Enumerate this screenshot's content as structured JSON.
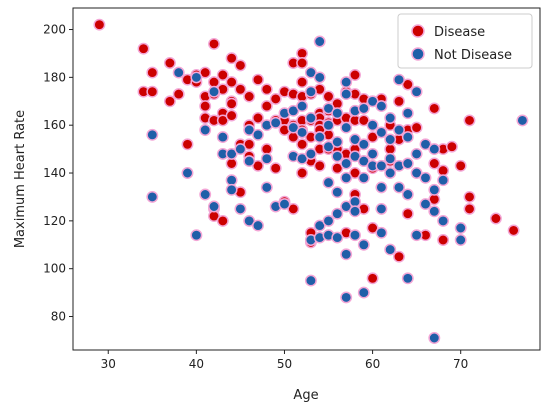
{
  "chart_data": {
    "type": "scatter",
    "title": "",
    "xlabel": "Age",
    "ylabel": "Maximum Heart Rate",
    "xlim": [
      26,
      79
    ],
    "ylim": [
      66,
      209
    ],
    "xticks": [
      30,
      40,
      50,
      60,
      70
    ],
    "yticks": [
      80,
      100,
      120,
      140,
      160,
      180,
      200
    ],
    "grid": false,
    "legend_position": "top-right",
    "series": [
      {
        "name": "Disease",
        "color": "#cc0000",
        "marker_outline": "#f3a6d6",
        "points": [
          [
            29,
            202
          ],
          [
            34,
            192
          ],
          [
            34,
            174
          ],
          [
            35,
            182
          ],
          [
            35,
            174
          ],
          [
            37,
            186
          ],
          [
            37,
            170
          ],
          [
            38,
            173
          ],
          [
            39,
            179
          ],
          [
            39,
            152
          ],
          [
            40,
            178
          ],
          [
            40,
            181
          ],
          [
            41,
            182
          ],
          [
            41,
            172
          ],
          [
            41,
            168
          ],
          [
            41,
            163
          ],
          [
            42,
            194
          ],
          [
            42,
            178
          ],
          [
            42,
            173
          ],
          [
            42,
            162
          ],
          [
            42,
            125
          ],
          [
            42,
            122
          ],
          [
            43,
            181
          ],
          [
            43,
            165
          ],
          [
            43,
            162
          ],
          [
            43,
            175
          ],
          [
            43,
            120
          ],
          [
            44,
            188
          ],
          [
            44,
            178
          ],
          [
            44,
            170
          ],
          [
            44,
            169
          ],
          [
            44,
            164
          ],
          [
            44,
            144
          ],
          [
            45,
            185
          ],
          [
            45,
            175
          ],
          [
            45,
            152
          ],
          [
            45,
            132
          ],
          [
            46,
            172
          ],
          [
            46,
            160
          ],
          [
            46,
            147
          ],
          [
            46,
            152
          ],
          [
            47,
            179
          ],
          [
            47,
            143
          ],
          [
            47,
            163
          ],
          [
            48,
            168
          ],
          [
            48,
            150
          ],
          [
            48,
            175
          ],
          [
            49,
            171
          ],
          [
            49,
            162
          ],
          [
            49,
            142
          ],
          [
            50,
            174
          ],
          [
            50,
            162
          ],
          [
            50,
            158
          ],
          [
            50,
            128
          ],
          [
            51,
            186
          ],
          [
            51,
            173
          ],
          [
            51,
            160
          ],
          [
            51,
            155
          ],
          [
            51,
            125
          ],
          [
            52,
            190
          ],
          [
            52,
            186
          ],
          [
            52,
            178
          ],
          [
            52,
            172
          ],
          [
            52,
            162
          ],
          [
            52,
            158
          ],
          [
            52,
            152
          ],
          [
            52,
            140
          ],
          [
            53,
            173
          ],
          [
            53,
            162
          ],
          [
            53,
            155
          ],
          [
            53,
            145
          ],
          [
            53,
            115
          ],
          [
            53,
            111
          ],
          [
            54,
            175
          ],
          [
            54,
            165
          ],
          [
            54,
            163
          ],
          [
            54,
            160
          ],
          [
            54,
            158
          ],
          [
            54,
            155
          ],
          [
            54,
            150
          ],
          [
            54,
            143
          ],
          [
            55,
            172
          ],
          [
            55,
            166
          ],
          [
            55,
            161
          ],
          [
            55,
            156
          ],
          [
            55,
            150
          ],
          [
            56,
            169
          ],
          [
            56,
            162
          ],
          [
            56,
            150
          ],
          [
            56,
            142
          ],
          [
            57,
            163
          ],
          [
            57,
            174
          ],
          [
            57,
            148
          ],
          [
            57,
            115
          ],
          [
            58,
            181
          ],
          [
            58,
            173
          ],
          [
            58,
            162
          ],
          [
            58,
            150
          ],
          [
            58,
            140
          ],
          [
            58,
            131
          ],
          [
            59,
            171
          ],
          [
            59,
            162
          ],
          [
            59,
            145
          ],
          [
            59,
            125
          ],
          [
            60,
            170
          ],
          [
            60,
            155
          ],
          [
            60,
            142
          ],
          [
            60,
            117
          ],
          [
            60,
            96
          ],
          [
            61,
            171
          ],
          [
            62,
            160
          ],
          [
            62,
            150
          ],
          [
            62,
            145
          ],
          [
            63,
            170
          ],
          [
            63,
            154
          ],
          [
            63,
            105
          ],
          [
            64,
            177
          ],
          [
            64,
            158
          ],
          [
            64,
            123
          ],
          [
            65,
            159
          ],
          [
            66,
            114
          ],
          [
            67,
            167
          ],
          [
            67,
            144
          ],
          [
            67,
            129
          ],
          [
            68,
            150
          ],
          [
            68,
            141
          ],
          [
            68,
            112
          ],
          [
            69,
            151
          ],
          [
            70,
            143
          ],
          [
            71,
            162
          ],
          [
            71,
            130
          ],
          [
            71,
            125
          ],
          [
            74,
            121
          ],
          [
            76,
            116
          ]
        ]
      },
      {
        "name": "Not Disease",
        "color": "#1f5fa8",
        "marker_outline": "#f3a6d6",
        "points": [
          [
            35,
            156
          ],
          [
            35,
            130
          ],
          [
            38,
            182
          ],
          [
            39,
            140
          ],
          [
            40,
            114
          ],
          [
            40,
            180
          ],
          [
            41,
            158
          ],
          [
            41,
            131
          ],
          [
            42,
            174
          ],
          [
            42,
            126
          ],
          [
            43,
            155
          ],
          [
            43,
            148
          ],
          [
            44,
            137
          ],
          [
            44,
            133
          ],
          [
            44,
            148
          ],
          [
            45,
            150
          ],
          [
            45,
            125
          ],
          [
            46,
            158
          ],
          [
            46,
            145
          ],
          [
            46,
            120
          ],
          [
            47,
            156
          ],
          [
            47,
            118
          ],
          [
            48,
            160
          ],
          [
            48,
            134
          ],
          [
            48,
            146
          ],
          [
            49,
            126
          ],
          [
            49,
            161
          ],
          [
            50,
            165
          ],
          [
            50,
            127
          ],
          [
            51,
            166
          ],
          [
            51,
            147
          ],
          [
            51,
            159
          ],
          [
            52,
            168
          ],
          [
            52,
            157
          ],
          [
            52,
            146
          ],
          [
            53,
            182
          ],
          [
            53,
            174
          ],
          [
            53,
            163
          ],
          [
            53,
            148
          ],
          [
            53,
            112
          ],
          [
            53,
            95
          ],
          [
            54,
            195
          ],
          [
            54,
            180
          ],
          [
            54,
            155
          ],
          [
            54,
            118
          ],
          [
            54,
            113
          ],
          [
            55,
            167
          ],
          [
            55,
            160
          ],
          [
            55,
            151
          ],
          [
            55,
            136
          ],
          [
            55,
            120
          ],
          [
            55,
            114
          ],
          [
            56,
            165
          ],
          [
            56,
            153
          ],
          [
            56,
            147
          ],
          [
            56,
            132
          ],
          [
            56,
            123
          ],
          [
            56,
            113
          ],
          [
            57,
            178
          ],
          [
            57,
            173
          ],
          [
            57,
            159
          ],
          [
            57,
            144
          ],
          [
            57,
            138
          ],
          [
            57,
            126
          ],
          [
            57,
            106
          ],
          [
            57,
            88
          ],
          [
            58,
            166
          ],
          [
            58,
            154
          ],
          [
            58,
            147
          ],
          [
            58,
            128
          ],
          [
            58,
            124
          ],
          [
            58,
            114
          ],
          [
            59,
            167
          ],
          [
            59,
            152
          ],
          [
            59,
            145
          ],
          [
            59,
            138
          ],
          [
            59,
            110
          ],
          [
            59,
            90
          ],
          [
            60,
            170
          ],
          [
            60,
            160
          ],
          [
            60,
            148
          ],
          [
            60,
            143
          ],
          [
            61,
            168
          ],
          [
            61,
            157
          ],
          [
            61,
            143
          ],
          [
            61,
            134
          ],
          [
            61,
            125
          ],
          [
            61,
            115
          ],
          [
            62,
            163
          ],
          [
            62,
            154
          ],
          [
            62,
            146
          ],
          [
            62,
            140
          ],
          [
            62,
            108
          ],
          [
            63,
            179
          ],
          [
            63,
            158
          ],
          [
            63,
            143
          ],
          [
            63,
            134
          ],
          [
            64,
            165
          ],
          [
            64,
            155
          ],
          [
            64,
            144
          ],
          [
            64,
            131
          ],
          [
            64,
            96
          ],
          [
            65,
            174
          ],
          [
            65,
            148
          ],
          [
            65,
            140
          ],
          [
            65,
            114
          ],
          [
            66,
            152
          ],
          [
            66,
            138
          ],
          [
            66,
            127
          ],
          [
            67,
            150
          ],
          [
            67,
            133
          ],
          [
            67,
            124
          ],
          [
            67,
            71
          ],
          [
            68,
            137
          ],
          [
            68,
            120
          ],
          [
            70,
            117
          ],
          [
            70,
            112
          ],
          [
            77,
            162
          ]
        ]
      }
    ]
  }
}
